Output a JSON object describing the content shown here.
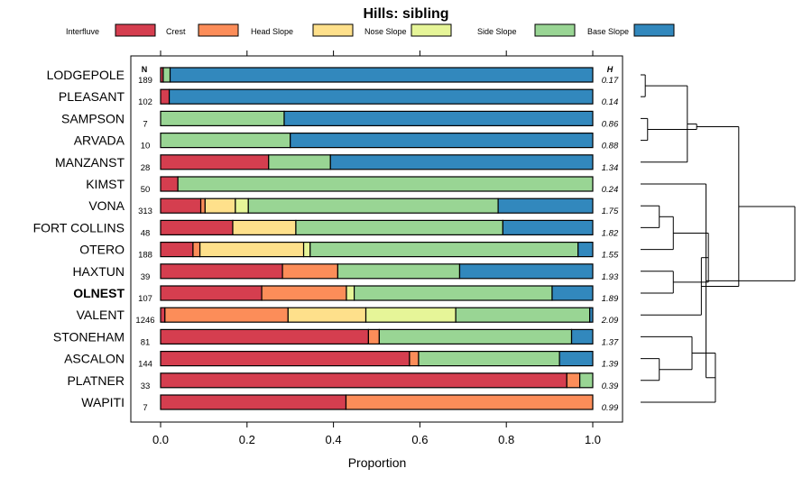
{
  "chart_data": {
    "type": "bar",
    "stacked": true,
    "orientation": "horizontal",
    "title": "Hills: sibling",
    "xlabel": "Proportion",
    "ylabel": "",
    "xlim": [
      0,
      1
    ],
    "xticks": [
      "0.0",
      "0.2",
      "0.4",
      "0.6",
      "0.8",
      "1.0"
    ],
    "n_header": "N",
    "h_header": "H",
    "legend_position": "top",
    "series": [
      {
        "name": "Interfluve",
        "color": "#d53e4f"
      },
      {
        "name": "Crest",
        "color": "#fc8d59"
      },
      {
        "name": "Head Slope",
        "color": "#fee08b"
      },
      {
        "name": "Nose Slope",
        "color": "#e6f598"
      },
      {
        "name": "Side Slope",
        "color": "#99d594"
      },
      {
        "name": "Base Slope",
        "color": "#3288bd"
      }
    ],
    "rows": [
      {
        "name": "LODGEPOLE",
        "bold": false,
        "n": "189",
        "h": "0.17",
        "values": [
          0.006,
          0,
          0,
          0,
          0.016,
          0.978
        ]
      },
      {
        "name": "PLEASANT",
        "bold": false,
        "n": "102",
        "h": "0.14",
        "values": [
          0.02,
          0,
          0,
          0,
          0,
          0.98
        ]
      },
      {
        "name": "SAMPSON",
        "bold": false,
        "n": "7",
        "h": "0.86",
        "values": [
          0,
          0,
          0,
          0,
          0.286,
          0.714
        ]
      },
      {
        "name": "ARVADA",
        "bold": false,
        "n": "10",
        "h": "0.88",
        "values": [
          0,
          0,
          0,
          0,
          0.3,
          0.7
        ]
      },
      {
        "name": "MANZANST",
        "bold": false,
        "n": "28",
        "h": "1.34",
        "values": [
          0.25,
          0,
          0,
          0,
          0.143,
          0.607
        ]
      },
      {
        "name": "KIMST",
        "bold": false,
        "n": "50",
        "h": "0.24",
        "values": [
          0.04,
          0,
          0,
          0,
          0.96,
          0
        ]
      },
      {
        "name": "VONA",
        "bold": false,
        "n": "313",
        "h": "1.75",
        "values": [
          0.093,
          0.01,
          0.07,
          0.03,
          0.578,
          0.219
        ]
      },
      {
        "name": "FORT COLLINS",
        "bold": false,
        "n": "48",
        "h": "1.82",
        "values": [
          0.167,
          0,
          0.146,
          0,
          0.479,
          0.208
        ]
      },
      {
        "name": "OTERO",
        "bold": false,
        "n": "188",
        "h": "1.55",
        "values": [
          0.075,
          0.016,
          0.24,
          0.015,
          0.62,
          0.034
        ]
      },
      {
        "name": "HAXTUN",
        "bold": false,
        "n": "39",
        "h": "1.93",
        "values": [
          0.282,
          0.128,
          0,
          0,
          0.282,
          0.308
        ]
      },
      {
        "name": "OLNEST",
        "bold": true,
        "n": "107",
        "h": "1.89",
        "values": [
          0.234,
          0.196,
          0,
          0.018,
          0.458,
          0.094
        ]
      },
      {
        "name": "VALENT",
        "bold": false,
        "n": "1246",
        "h": "2.09",
        "values": [
          0.01,
          0.285,
          0.18,
          0.208,
          0.31,
          0.007
        ]
      },
      {
        "name": "STONEHAM",
        "bold": false,
        "n": "81",
        "h": "1.37",
        "values": [
          0.481,
          0.025,
          0,
          0,
          0.445,
          0.049
        ]
      },
      {
        "name": "ASCALON",
        "bold": false,
        "n": "144",
        "h": "1.39",
        "values": [
          0.576,
          0.021,
          0,
          0,
          0.326,
          0.077
        ]
      },
      {
        "name": "PLATNER",
        "bold": false,
        "n": "33",
        "h": "0.39",
        "values": [
          0.94,
          0.03,
          0,
          0,
          0.03,
          0
        ]
      },
      {
        "name": "WAPITI",
        "bold": false,
        "n": "7",
        "h": "0.99",
        "values": [
          0.429,
          0.571,
          0,
          0,
          0,
          0
        ]
      }
    ],
    "dendrogram": {
      "leaf_order": [
        "LODGEPOLE",
        "PLEASANT",
        "SAMPSON",
        "ARVADA",
        "MANZANST",
        "KIMST",
        "VONA",
        "FORT COLLINS",
        "OTERO",
        "HAXTUN",
        "OLNEST",
        "VALENT",
        "STONEHAM",
        "ASCALON",
        "PLATNER",
        "WAPITI"
      ],
      "merges": [
        [
          1,
          2,
          0.02
        ],
        [
          3,
          4,
          0.03
        ],
        [
          -1,
          5,
          0.2
        ],
        [
          -3,
          -2,
          0.24
        ],
        [
          7,
          8,
          0.08
        ],
        [
          -5,
          9,
          0.14
        ],
        [
          10,
          11,
          0.14
        ],
        [
          -6,
          -7,
          0.29
        ],
        [
          -8,
          12,
          0.26
        ],
        [
          -4,
          -9,
          0.42
        ],
        [
          14,
          15,
          0.08
        ],
        [
          13,
          -11,
          0.22
        ],
        [
          -12,
          16,
          0.32
        ],
        [
          -13,
          6,
          0.28
        ],
        [
          -10,
          -14,
          0.66
        ]
      ]
    }
  }
}
